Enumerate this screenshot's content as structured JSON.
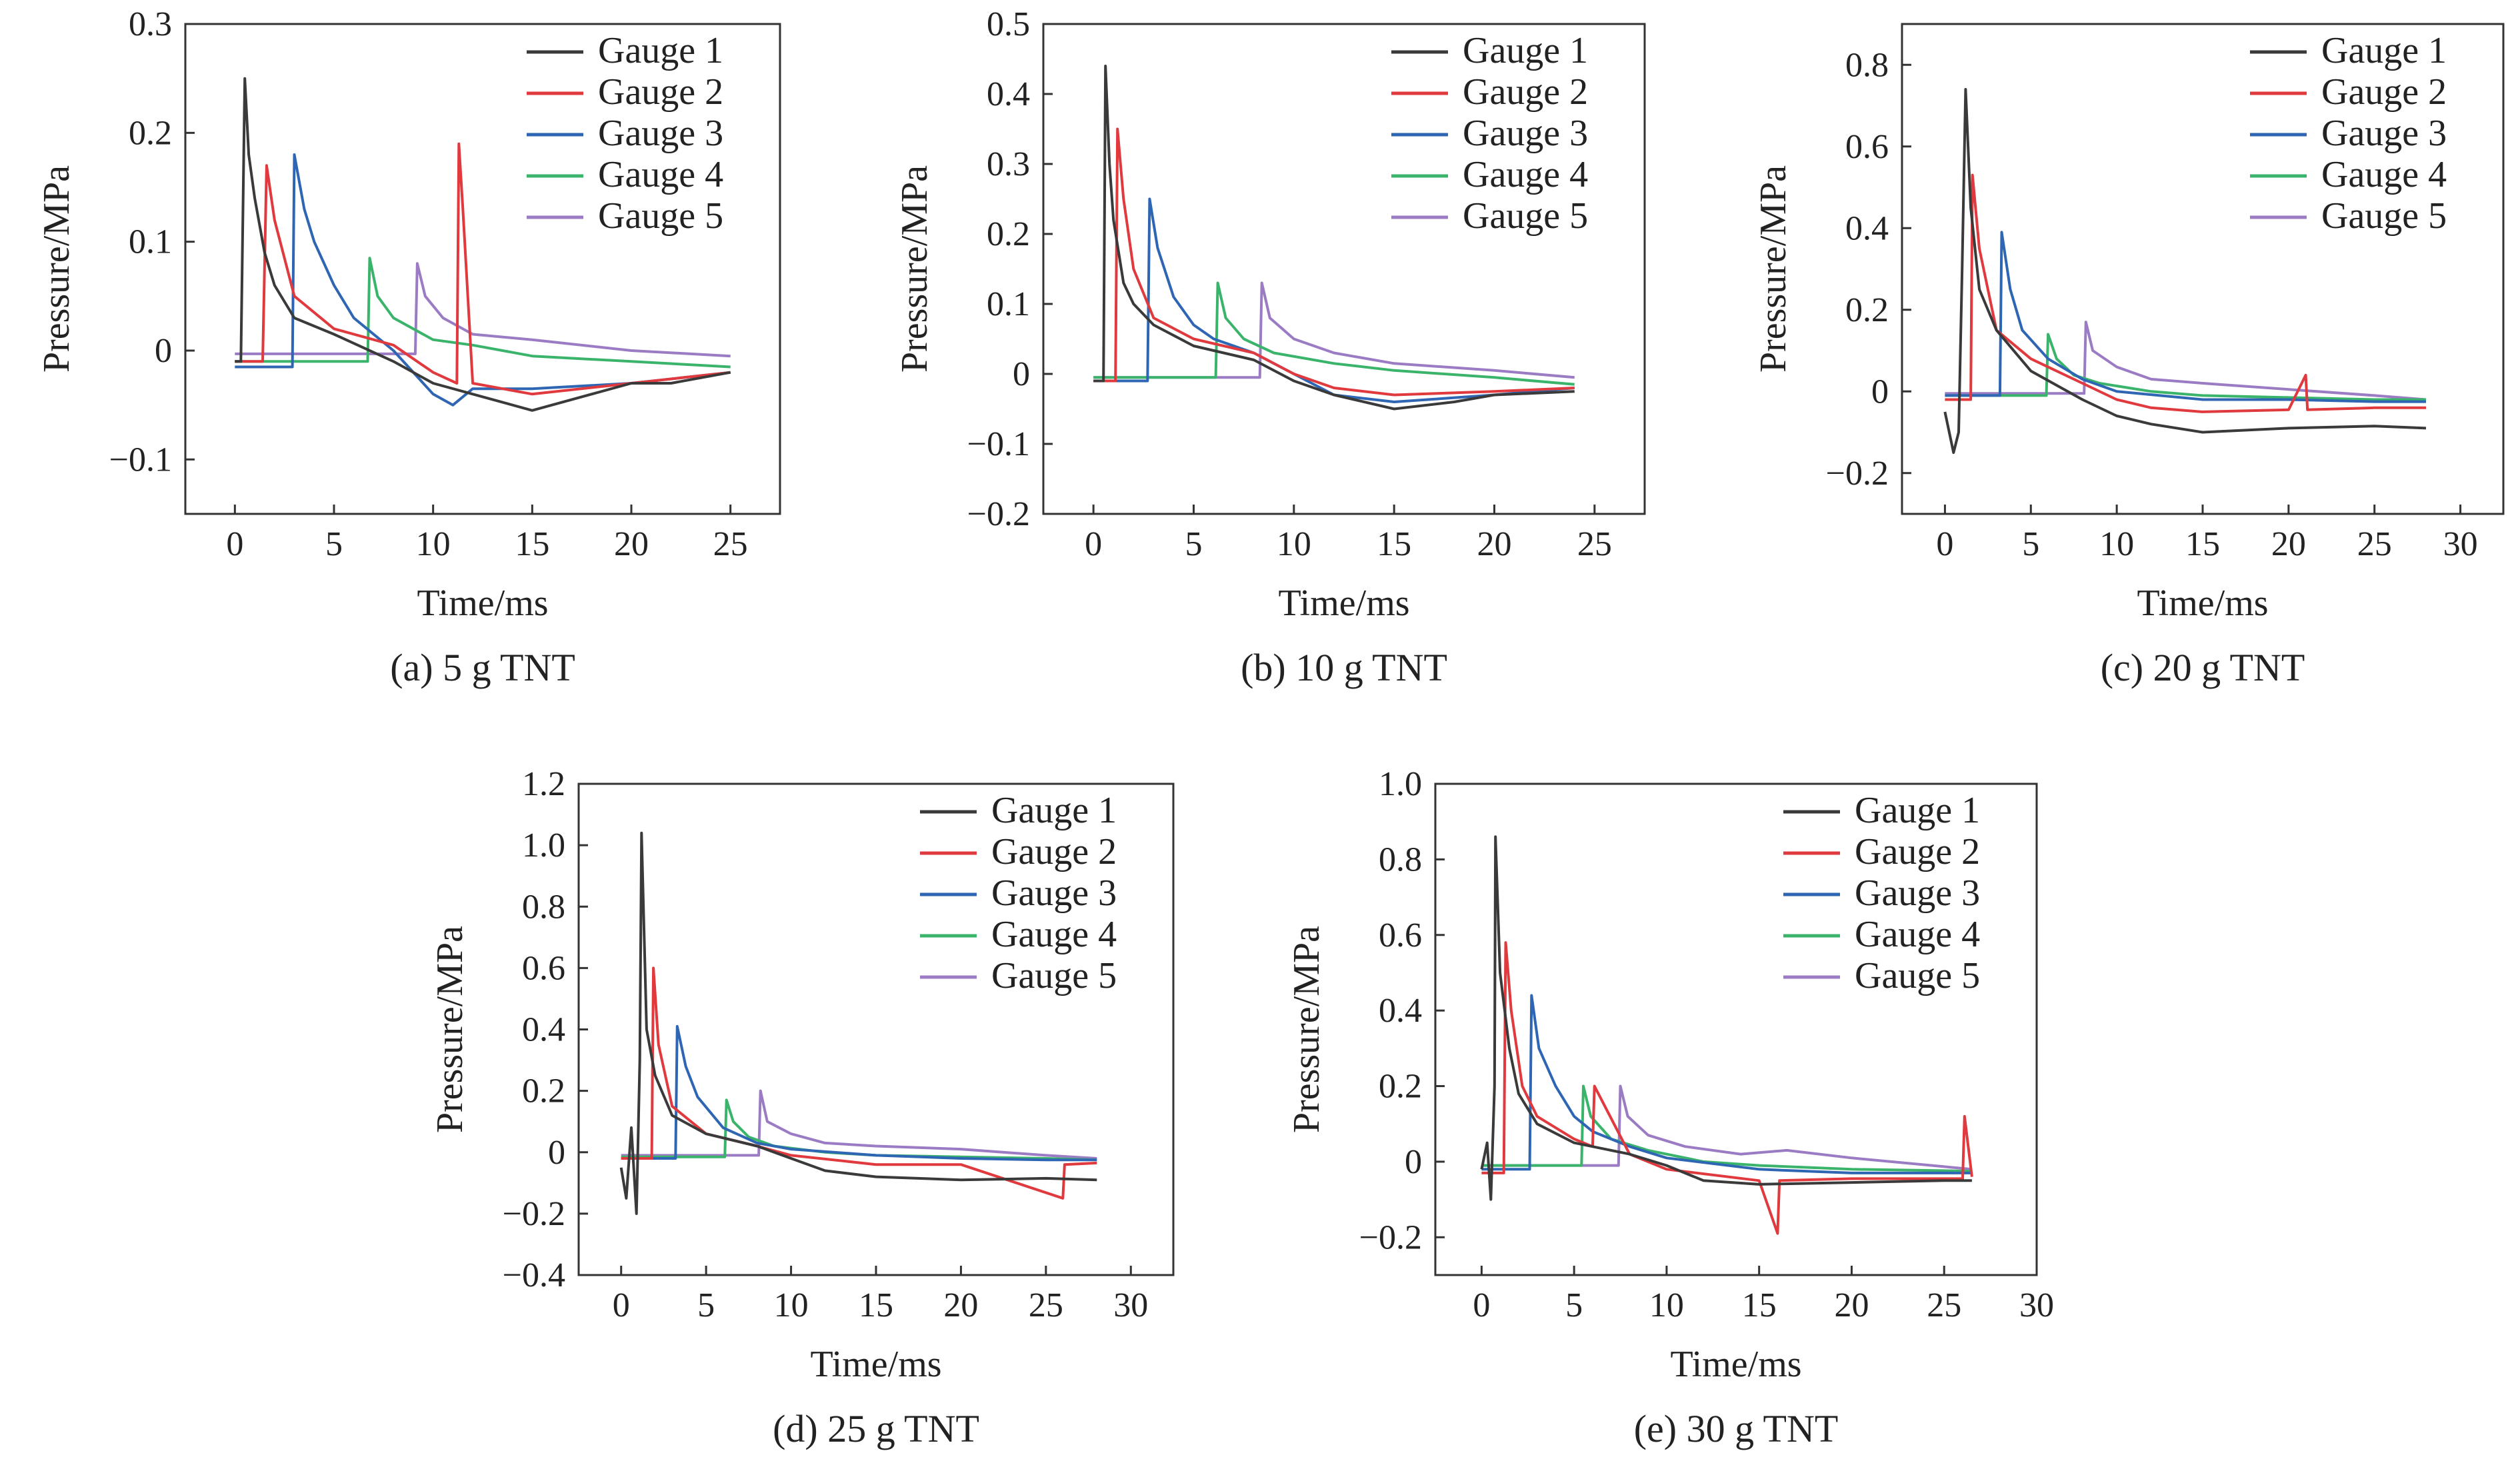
{
  "colors": {
    "Gauge 1": "#3a3a3a",
    "Gauge 2": "#e0393e",
    "Gauge 3": "#2f66b3",
    "Gauge 4": "#3bb46b",
    "Gauge 5": "#9b7cc4"
  },
  "chart_data": [
    {
      "type": "line",
      "caption": "(a) 5 g TNT",
      "xlabel": "Time/ms",
      "ylabel": "Pressure/MPa",
      "xlim": [
        -2.5,
        27.5
      ],
      "ylim": [
        -0.15,
        0.3
      ],
      "xticks": [
        0,
        5,
        10,
        15,
        20,
        25
      ],
      "yticks": [
        -0.1,
        0,
        0.1,
        0.2,
        0.3
      ],
      "ytick_labels": [
        "−0.1",
        "0",
        "0.1",
        "0.2",
        "0.3"
      ],
      "legend_position": "top-right",
      "series": [
        {
          "name": "Gauge 1",
          "x": [
            0,
            0.3,
            0.5,
            0.7,
            1.0,
            1.5,
            2.0,
            3.0,
            5.0,
            8.0,
            10.0,
            12.0,
            15.0,
            18.0,
            20.0,
            22.0,
            25.0
          ],
          "y": [
            -0.01,
            -0.01,
            0.25,
            0.18,
            0.14,
            0.09,
            0.06,
            0.03,
            0.015,
            -0.01,
            -0.03,
            -0.04,
            -0.055,
            -0.04,
            -0.03,
            -0.03,
            -0.02
          ]
        },
        {
          "name": "Gauge 2",
          "x": [
            0,
            1.4,
            1.6,
            2.0,
            3.0,
            5.0,
            8.0,
            10.0,
            11.2,
            11.3,
            11.5,
            12.0,
            15.0,
            20.0,
            25.0
          ],
          "y": [
            -0.01,
            -0.01,
            0.17,
            0.12,
            0.05,
            0.02,
            0.005,
            -0.02,
            -0.03,
            0.19,
            0.13,
            -0.03,
            -0.04,
            -0.03,
            -0.02
          ]
        },
        {
          "name": "Gauge 3",
          "x": [
            0,
            2.9,
            3.0,
            3.5,
            4.0,
            5.0,
            6.0,
            8.0,
            10.0,
            11.0,
            12.0,
            15.0,
            20.0,
            25.0
          ],
          "y": [
            -0.015,
            -0.015,
            0.18,
            0.13,
            0.1,
            0.06,
            0.03,
            0.0,
            -0.04,
            -0.05,
            -0.035,
            -0.035,
            -0.03,
            -0.02
          ]
        },
        {
          "name": "Gauge 4",
          "x": [
            0,
            6.7,
            6.8,
            7.2,
            8.0,
            10.0,
            12.0,
            15.0,
            20.0,
            25.0
          ],
          "y": [
            -0.01,
            -0.01,
            0.085,
            0.05,
            0.03,
            0.01,
            0.005,
            -0.005,
            -0.01,
            -0.015
          ]
        },
        {
          "name": "Gauge 5",
          "x": [
            0,
            9.1,
            9.2,
            9.6,
            10.5,
            12.0,
            15.0,
            20.0,
            25.0
          ],
          "y": [
            -0.003,
            -0.003,
            0.08,
            0.05,
            0.03,
            0.015,
            0.01,
            0.0,
            -0.005
          ]
        }
      ]
    },
    {
      "type": "line",
      "caption": "(b) 10 g TNT",
      "xlabel": "Time/ms",
      "ylabel": "Pressure/MPa",
      "xlim": [
        -2.5,
        27.5
      ],
      "ylim": [
        -0.2,
        0.5
      ],
      "xticks": [
        0,
        5,
        10,
        15,
        20,
        25
      ],
      "yticks": [
        -0.2,
        -0.1,
        0,
        0.1,
        0.2,
        0.3,
        0.4,
        0.5
      ],
      "ytick_labels": [
        "−0.2",
        "−0.1",
        "0",
        "0.1",
        "0.2",
        "0.3",
        "0.4",
        "0.5"
      ],
      "legend_position": "top-right",
      "series": [
        {
          "name": "Gauge 1",
          "x": [
            0,
            0.5,
            0.6,
            0.8,
            1.0,
            1.5,
            2.0,
            3.0,
            5.0,
            8.0,
            10.0,
            12.0,
            15.0,
            18.0,
            20.0,
            24.0
          ],
          "y": [
            -0.01,
            -0.01,
            0.44,
            0.3,
            0.22,
            0.13,
            0.1,
            0.07,
            0.04,
            0.02,
            -0.01,
            -0.03,
            -0.05,
            -0.04,
            -0.03,
            -0.025
          ]
        },
        {
          "name": "Gauge 2",
          "x": [
            0,
            1.1,
            1.2,
            1.5,
            2.0,
            3.0,
            5.0,
            8.0,
            10.0,
            12.0,
            15.0,
            20.0,
            24.0
          ],
          "y": [
            -0.01,
            -0.01,
            0.35,
            0.25,
            0.15,
            0.08,
            0.05,
            0.03,
            0.0,
            -0.02,
            -0.03,
            -0.025,
            -0.02
          ]
        },
        {
          "name": "Gauge 3",
          "x": [
            0,
            2.7,
            2.8,
            3.2,
            4.0,
            5.0,
            6.0,
            8.0,
            10.0,
            12.0,
            15.0,
            20.0,
            24.0
          ],
          "y": [
            -0.01,
            -0.01,
            0.25,
            0.18,
            0.11,
            0.07,
            0.05,
            0.03,
            0.0,
            -0.03,
            -0.04,
            -0.03,
            -0.02
          ]
        },
        {
          "name": "Gauge 4",
          "x": [
            0,
            6.1,
            6.2,
            6.6,
            7.5,
            9.0,
            12.0,
            15.0,
            20.0,
            24.0
          ],
          "y": [
            -0.005,
            -0.005,
            0.13,
            0.08,
            0.05,
            0.03,
            0.015,
            0.005,
            -0.005,
            -0.015
          ]
        },
        {
          "name": "Gauge 5",
          "x": [
            0,
            8.3,
            8.4,
            8.8,
            10.0,
            12.0,
            15.0,
            20.0,
            24.0
          ],
          "y": [
            -0.005,
            -0.005,
            0.13,
            0.08,
            0.05,
            0.03,
            0.015,
            0.005,
            -0.005
          ]
        }
      ]
    },
    {
      "type": "line",
      "caption": "(c) 20 g TNT",
      "xlabel": "Time/ms",
      "ylabel": "Pressure/MPa",
      "xlim": [
        -2.5,
        32.5
      ],
      "ylim": [
        -0.3,
        0.9
      ],
      "xticks": [
        0,
        5,
        10,
        15,
        20,
        25,
        30
      ],
      "yticks": [
        -0.2,
        0,
        0.2,
        0.4,
        0.6,
        0.8
      ],
      "ytick_labels": [
        "−0.2",
        "0",
        "0.2",
        "0.4",
        "0.6",
        "0.8"
      ],
      "legend_position": "top-right",
      "series": [
        {
          "name": "Gauge 1",
          "x": [
            0,
            0.5,
            0.8,
            1.0,
            1.2,
            1.5,
            2.0,
            3.0,
            5.0,
            8.0,
            10.0,
            12.0,
            15.0,
            20.0,
            25.0,
            28.0
          ],
          "y": [
            -0.05,
            -0.15,
            -0.1,
            0.3,
            0.74,
            0.45,
            0.25,
            0.15,
            0.05,
            -0.02,
            -0.06,
            -0.08,
            -0.1,
            -0.09,
            -0.085,
            -0.09
          ]
        },
        {
          "name": "Gauge 2",
          "x": [
            0,
            1.5,
            1.6,
            2.0,
            3.0,
            5.0,
            8.0,
            10.0,
            12.0,
            15.0,
            20.0,
            21.0,
            21.1,
            25.0,
            28.0
          ],
          "y": [
            -0.02,
            -0.02,
            0.53,
            0.35,
            0.15,
            0.08,
            0.02,
            -0.02,
            -0.04,
            -0.05,
            -0.045,
            0.04,
            -0.045,
            -0.04,
            -0.04
          ]
        },
        {
          "name": "Gauge 3",
          "x": [
            0,
            3.2,
            3.3,
            3.8,
            4.5,
            6.0,
            8.0,
            10.0,
            15.0,
            20.0,
            25.0,
            28.0
          ],
          "y": [
            -0.01,
            -0.01,
            0.39,
            0.25,
            0.15,
            0.08,
            0.03,
            0.0,
            -0.02,
            -0.02,
            -0.025,
            -0.025
          ]
        },
        {
          "name": "Gauge 4",
          "x": [
            0,
            5.9,
            6.0,
            6.5,
            7.5,
            9.0,
            12.0,
            15.0,
            20.0,
            25.0,
            28.0
          ],
          "y": [
            -0.01,
            -0.01,
            0.14,
            0.08,
            0.04,
            0.02,
            0.0,
            -0.01,
            -0.015,
            -0.02,
            -0.02
          ]
        },
        {
          "name": "Gauge 5",
          "x": [
            0,
            8.1,
            8.2,
            8.6,
            10.0,
            12.0,
            15.0,
            20.0,
            25.0,
            28.0
          ],
          "y": [
            -0.005,
            -0.005,
            0.17,
            0.1,
            0.06,
            0.03,
            0.02,
            0.005,
            -0.01,
            -0.02
          ]
        }
      ]
    },
    {
      "type": "line",
      "caption": "(d) 25 g TNT",
      "xlabel": "Time/ms",
      "ylabel": "Pressure/MPa",
      "xlim": [
        -2.5,
        32.5
      ],
      "ylim": [
        -0.4,
        1.2
      ],
      "xticks": [
        0,
        5,
        10,
        15,
        20,
        25,
        30
      ],
      "yticks": [
        -0.4,
        -0.2,
        0,
        0.2,
        0.4,
        0.6,
        0.8,
        1.0,
        1.2
      ],
      "ytick_labels": [
        "−0.4",
        "−0.2",
        "0",
        "0.2",
        "0.4",
        "0.6",
        "0.8",
        "1.0",
        "1.2"
      ],
      "legend_position": "top-right",
      "series": [
        {
          "name": "Gauge 1",
          "x": [
            0,
            0.3,
            0.6,
            0.9,
            1.1,
            1.2,
            1.5,
            2.0,
            3.0,
            5.0,
            8.0,
            10.0,
            12.0,
            15.0,
            20.0,
            25.0,
            28.0
          ],
          "y": [
            -0.05,
            -0.15,
            0.08,
            -0.2,
            0.3,
            1.04,
            0.4,
            0.25,
            0.12,
            0.06,
            0.02,
            -0.02,
            -0.06,
            -0.08,
            -0.09,
            -0.085,
            -0.09
          ]
        },
        {
          "name": "Gauge 2",
          "x": [
            0,
            1.8,
            1.9,
            2.2,
            3.0,
            5.0,
            8.0,
            10.0,
            15.0,
            20.0,
            26.0,
            26.1,
            28.0
          ],
          "y": [
            -0.02,
            -0.02,
            0.6,
            0.35,
            0.15,
            0.06,
            0.02,
            -0.01,
            -0.04,
            -0.04,
            -0.15,
            -0.04,
            -0.035
          ]
        },
        {
          "name": "Gauge 3",
          "x": [
            0,
            3.2,
            3.3,
            3.8,
            4.5,
            6.0,
            8.0,
            10.0,
            15.0,
            20.0,
            25.0,
            28.0
          ],
          "y": [
            -0.02,
            -0.02,
            0.41,
            0.28,
            0.18,
            0.08,
            0.03,
            0.01,
            -0.01,
            -0.02,
            -0.025,
            -0.025
          ]
        },
        {
          "name": "Gauge 4",
          "x": [
            0,
            6.1,
            6.2,
            6.6,
            7.5,
            9.0,
            12.0,
            15.0,
            20.0,
            25.0,
            28.0
          ],
          "y": [
            -0.015,
            -0.015,
            0.17,
            0.1,
            0.05,
            0.02,
            0.0,
            -0.01,
            -0.015,
            -0.02,
            -0.025
          ]
        },
        {
          "name": "Gauge 5",
          "x": [
            0,
            8.1,
            8.2,
            8.6,
            10.0,
            12.0,
            15.0,
            20.0,
            25.0,
            28.0
          ],
          "y": [
            -0.01,
            -0.01,
            0.2,
            0.1,
            0.06,
            0.03,
            0.02,
            0.01,
            -0.01,
            -0.02
          ]
        }
      ]
    },
    {
      "type": "line",
      "caption": "(e) 30 g TNT",
      "xlabel": "Time/ms",
      "ylabel": "Pressure/MPa",
      "xlim": [
        -2.5,
        30.0
      ],
      "ylim": [
        -0.3,
        1.0
      ],
      "xticks": [
        0,
        5,
        10,
        15,
        20,
        25,
        30
      ],
      "yticks": [
        -0.2,
        0,
        0.2,
        0.4,
        0.6,
        0.8,
        1.0
      ],
      "ytick_labels": [
        "−0.2",
        "0",
        "0.2",
        "0.4",
        "0.6",
        "0.8",
        "1.0"
      ],
      "legend_position": "top-right",
      "series": [
        {
          "name": "Gauge 1",
          "x": [
            0,
            0.3,
            0.5,
            0.7,
            0.75,
            1.0,
            1.5,
            2.0,
            3.0,
            5.0,
            8.0,
            10.0,
            12.0,
            15.0,
            20.0,
            25.0,
            26.5
          ],
          "y": [
            -0.02,
            0.05,
            -0.1,
            0.2,
            0.86,
            0.5,
            0.3,
            0.18,
            0.1,
            0.05,
            0.02,
            -0.01,
            -0.05,
            -0.06,
            -0.055,
            -0.05,
            -0.05
          ]
        },
        {
          "name": "Gauge 2",
          "x": [
            0,
            1.2,
            1.3,
            1.6,
            2.2,
            3.0,
            5.0,
            6.0,
            6.1,
            8.0,
            10.0,
            15.0,
            16.0,
            16.1,
            20.0,
            26.0,
            26.1,
            26.5
          ],
          "y": [
            -0.03,
            -0.03,
            0.58,
            0.4,
            0.2,
            0.12,
            0.06,
            0.04,
            0.2,
            0.02,
            -0.02,
            -0.05,
            -0.19,
            -0.05,
            -0.045,
            -0.045,
            0.12,
            -0.04
          ]
        },
        {
          "name": "Gauge 3",
          "x": [
            0,
            2.6,
            2.7,
            3.1,
            4.0,
            5.0,
            6.0,
            8.0,
            10.0,
            15.0,
            20.0,
            26.5
          ],
          "y": [
            -0.02,
            -0.02,
            0.44,
            0.3,
            0.2,
            0.12,
            0.08,
            0.04,
            0.01,
            -0.02,
            -0.03,
            -0.03
          ]
        },
        {
          "name": "Gauge 4",
          "x": [
            0,
            5.4,
            5.5,
            5.9,
            7.0,
            9.0,
            12.0,
            15.0,
            20.0,
            26.5
          ],
          "y": [
            -0.01,
            -0.01,
            0.2,
            0.12,
            0.06,
            0.03,
            0.0,
            -0.01,
            -0.02,
            -0.025
          ]
        },
        {
          "name": "Gauge 5",
          "x": [
            0,
            7.4,
            7.5,
            7.9,
            9.0,
            11.0,
            14.0,
            16.5,
            20.0,
            26.5
          ],
          "y": [
            -0.01,
            -0.01,
            0.2,
            0.12,
            0.07,
            0.04,
            0.02,
            0.03,
            0.01,
            -0.02
          ]
        }
      ]
    }
  ]
}
